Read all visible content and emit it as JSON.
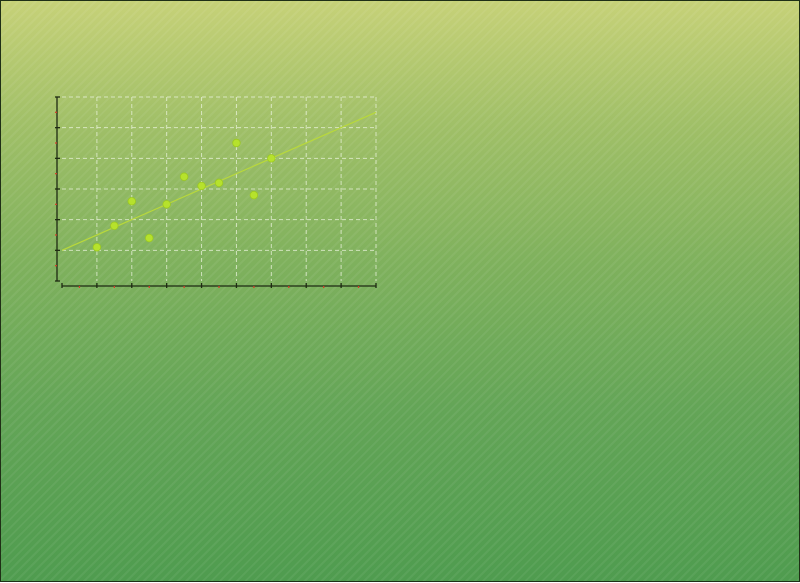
{
  "colors": {
    "point": "#b6e22c",
    "trendline": "#b9d93a",
    "grid": "#eaf3dd",
    "axis": "#1e2a12",
    "tick_marker": "#d1402a"
  },
  "chart_data": {
    "type": "scatter",
    "title": "",
    "xlabel": "",
    "ylabel": "",
    "xlim": [
      0,
      18
    ],
    "ylim": [
      0,
      60
    ],
    "grid": true,
    "legend": "none",
    "series": [
      {
        "points": [
          {
            "x": 2,
            "y": 11
          },
          {
            "x": 3,
            "y": 18
          },
          {
            "x": 4,
            "y": 26
          },
          {
            "x": 5,
            "y": 14
          },
          {
            "x": 6,
            "y": 25
          },
          {
            "x": 7,
            "y": 34
          },
          {
            "x": 8,
            "y": 31
          },
          {
            "x": 9,
            "y": 32
          },
          {
            "x": 10,
            "y": 45
          },
          {
            "x": 11,
            "y": 28
          },
          {
            "x": 12,
            "y": 40
          }
        ]
      }
    ],
    "trendline": {
      "type": "linear",
      "x": [
        0,
        18
      ],
      "y": [
        10,
        55
      ]
    }
  }
}
